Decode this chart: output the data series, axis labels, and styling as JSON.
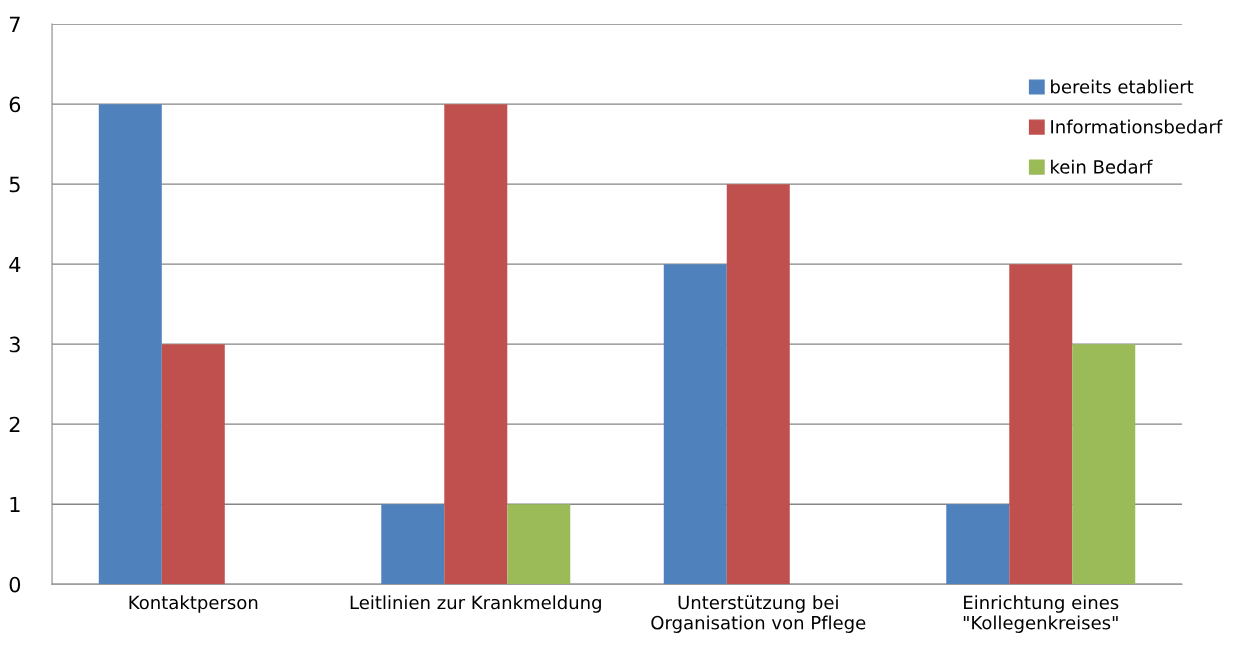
{
  "chart_data": {
    "type": "bar",
    "categories": [
      "Kontaktperson",
      "Leitlinien zur Krankmeldung",
      "Unterstützung bei\nOrganisation von Pflege",
      "Einrichtung eines\n\"Kollegenkreises\""
    ],
    "series": [
      {
        "name": "bereits etabliert",
        "color": "#4f81bd",
        "values": [
          6,
          1,
          4,
          1
        ]
      },
      {
        "name": "Informationsbedarf",
        "color": "#c0504d",
        "values": [
          3,
          6,
          5,
          4
        ]
      },
      {
        "name": "kein Bedarf",
        "color": "#9bbb59",
        "values": [
          null,
          1,
          null,
          3
        ]
      }
    ],
    "ylim": [
      0,
      7
    ],
    "yticks": [
      0,
      1,
      2,
      3,
      4,
      5,
      6,
      7
    ],
    "grid": "y",
    "legend": "top right"
  }
}
